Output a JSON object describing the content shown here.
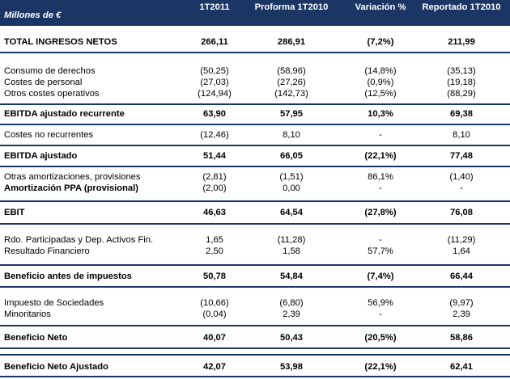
{
  "header": {
    "label": "Millones de €",
    "columns": [
      "1T2011",
      "Proforma 1T2010",
      "Variación %",
      "Reportado 1T2010"
    ]
  },
  "rows": [
    {
      "label": "TOTAL INGRESOS NETOS",
      "bold": true,
      "values": [
        "266,11",
        "286,91",
        "(7,2%)",
        "211,99"
      ]
    },
    {
      "label": "Consumo de derechos",
      "bold": false,
      "values": [
        "(50,25)",
        "(58,96)",
        "(14,8%)",
        "(35,13)"
      ]
    },
    {
      "label": "Costes de personal",
      "bold": false,
      "values": [
        "(27,03)",
        "(27,26)",
        "(0,9%)",
        "(19,18)"
      ]
    },
    {
      "label": "Otros costes operativos",
      "bold": false,
      "values": [
        "(124,94)",
        "(142,73)",
        "(12,5%)",
        "(88,29)"
      ]
    },
    {
      "label": "EBITDA ajustado recurrente",
      "bold": true,
      "values": [
        "63,90",
        "57,95",
        "10,3%",
        "69,38"
      ]
    },
    {
      "label": "Costes no recurrentes",
      "bold": false,
      "values": [
        "(12,46)",
        "8,10",
        "-",
        "8,10"
      ]
    },
    {
      "label": "EBITDA ajustado",
      "bold": true,
      "values": [
        "51,44",
        "66,05",
        "(22,1%)",
        "77,48"
      ]
    },
    {
      "label": "Otras amortizaciones, provisiones",
      "bold": false,
      "values": [
        "(2,81)",
        "(1,51)",
        "86,1%",
        "(1,40)"
      ]
    },
    {
      "label": "Amortización PPA (provisional)",
      "bold": false,
      "values": [
        "(2,00)",
        "0,00",
        "-",
        "-"
      ]
    },
    {
      "label": "EBIT",
      "bold": true,
      "values": [
        "46,63",
        "64,54",
        "(27,8%)",
        "76,08"
      ]
    },
    {
      "label": "Rdo. Participadas y Dep. Activos Fin.",
      "bold": false,
      "values": [
        "1,65",
        "(11,28)",
        "-",
        "(11,29)"
      ]
    },
    {
      "label": "Resultado Financiero",
      "bold": false,
      "values": [
        "2,50",
        "1,58",
        "57,7%",
        "1,64"
      ]
    },
    {
      "label": "Beneficio antes de impuestos",
      "bold": true,
      "values": [
        "50,78",
        "54,84",
        "(7,4%)",
        "66,44"
      ]
    },
    {
      "label": "Impuesto de Sociedades",
      "bold": false,
      "values": [
        "(10,66)",
        "(6,80)",
        "56,9%",
        "(9,97)"
      ]
    },
    {
      "label": "Minoritarios",
      "bold": false,
      "values": [
        "(0,04)",
        "2,39",
        "-",
        "2,39"
      ]
    },
    {
      "label": "Beneficio Neto",
      "bold": true,
      "values": [
        "40,07",
        "50,43",
        "(20,5%)",
        "58,86"
      ]
    },
    {
      "label": "Beneficio Neto Ajustado",
      "bold": true,
      "values": [
        "42,07",
        "53,98",
        "(22,1%)",
        "62,41"
      ]
    }
  ]
}
